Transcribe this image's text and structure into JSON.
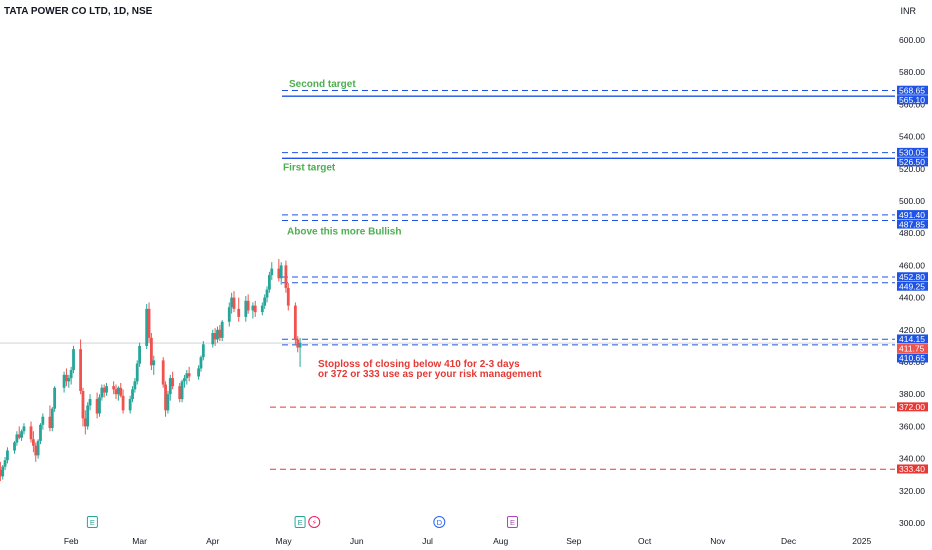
{
  "header": {
    "title": "TATA POWER CO LTD, 1D, NSE",
    "currency": "INR"
  },
  "chart_data": {
    "type": "candlestick",
    "y_range": [
      295,
      610
    ],
    "y_ticks": [
      300,
      320,
      340,
      360,
      380,
      400,
      420,
      440,
      460,
      480,
      500,
      520,
      540,
      560,
      580,
      600
    ],
    "y_tick_labels": [
      "300.00",
      "320.00",
      "340.00",
      "360.00",
      "380.00",
      "400.00",
      "420.00",
      "440.00",
      "460.00",
      "480.00",
      "500.00",
      "520.00",
      "540.00",
      "560.00",
      "580.00",
      "600.00"
    ],
    "x_labels": [
      {
        "label": "Feb",
        "date": "2024-02-01"
      },
      {
        "label": "Mar",
        "date": "2024-03-01"
      },
      {
        "label": "Apr",
        "date": "2024-04-01"
      },
      {
        "label": "May",
        "date": "2024-05-01"
      },
      {
        "label": "Jun",
        "date": "2024-06-01"
      },
      {
        "label": "Jul",
        "date": "2024-07-01"
      },
      {
        "label": "Aug",
        "date": "2024-08-01"
      },
      {
        "label": "Sep",
        "date": "2024-09-01"
      },
      {
        "label": "Oct",
        "date": "2024-10-01"
      },
      {
        "label": "Nov",
        "date": "2024-11-01"
      },
      {
        "label": "Dec",
        "date": "2024-12-01"
      },
      {
        "label": "2025",
        "date": "2025-01-01"
      }
    ],
    "last_price": 411.75,
    "level_lines": [
      {
        "value": 568.65,
        "label": "568.65",
        "style": "dashed",
        "color": "#1e53e5"
      },
      {
        "value": 565.1,
        "label": "565.10",
        "style": "solid",
        "color": "#1e53e5"
      },
      {
        "value": 530.05,
        "label": "530.05",
        "style": "dashed",
        "color": "#1e53e5"
      },
      {
        "value": 526.5,
        "label": "526.50",
        "style": "solid",
        "color": "#1e53e5"
      },
      {
        "value": 491.4,
        "label": "491.40",
        "style": "dashed",
        "color": "#1e53e5"
      },
      {
        "value": 487.85,
        "label": "487.85",
        "style": "dashed",
        "color": "#1e53e5"
      },
      {
        "value": 452.8,
        "label": "452.80",
        "style": "dashed",
        "color": "#1e53e5"
      },
      {
        "value": 449.25,
        "label": "449.25",
        "style": "dashed",
        "color": "#1e53e5"
      },
      {
        "value": 414.15,
        "label": "414.15",
        "style": "dashed",
        "color": "#1e53e5"
      },
      {
        "value": 410.65,
        "label": "410.65",
        "style": "dashed",
        "color": "#1e53e5"
      },
      {
        "value": 372.0,
        "label": "372.00",
        "style": "dashed",
        "color": "#e53935"
      },
      {
        "value": 333.4,
        "label": "333.40",
        "style": "dashed",
        "color": "#e53935"
      }
    ],
    "annotations": [
      {
        "text": "Second target",
        "color": "#4caf50",
        "level": 565.1
      },
      {
        "text": "First target",
        "color": "#4caf50",
        "level": 526.5
      },
      {
        "text": "Above this more Bullish",
        "color": "#4caf50",
        "level": 487.85
      },
      {
        "text": "Stoploss of closing below 410 for 2-3 days",
        "color": "#e53935",
        "level": 410.65
      },
      {
        "text": "or 372 or 333 use as per your risk management",
        "color": "#e53935",
        "level": 410.65
      }
    ],
    "event_markers": [
      {
        "symbol": "E",
        "date": "2024-02-10",
        "color": "#26a69a"
      },
      {
        "symbol": "E",
        "date": "2024-05-08",
        "color": "#26a69a"
      },
      {
        "symbol": "⚡",
        "date": "2024-05-14",
        "color": "#e91e63"
      },
      {
        "symbol": "D",
        "date": "2024-07-06",
        "color": "#2962ff"
      },
      {
        "symbol": "E",
        "date": "2024-08-06",
        "color": "#ab47bc"
      }
    ],
    "candles": [
      {
        "date": "2024-01-02",
        "o": 333,
        "h": 338,
        "l": 326,
        "c": 329
      },
      {
        "date": "2024-01-03",
        "o": 329,
        "h": 336,
        "l": 327,
        "c": 335
      },
      {
        "date": "2024-01-04",
        "o": 335,
        "h": 341,
        "l": 333,
        "c": 339
      },
      {
        "date": "2024-01-05",
        "o": 339,
        "h": 347,
        "l": 337,
        "c": 345
      },
      {
        "date": "2024-01-08",
        "o": 345,
        "h": 351,
        "l": 343,
        "c": 350
      },
      {
        "date": "2024-01-09",
        "o": 350,
        "h": 357,
        "l": 348,
        "c": 355
      },
      {
        "date": "2024-01-10",
        "o": 355,
        "h": 360,
        "l": 352,
        "c": 353
      },
      {
        "date": "2024-01-11",
        "o": 353,
        "h": 358,
        "l": 351,
        "c": 357
      },
      {
        "date": "2024-01-12",
        "o": 357,
        "h": 362,
        "l": 355,
        "c": 360
      },
      {
        "date": "2024-01-15",
        "o": 360,
        "h": 363,
        "l": 350,
        "c": 352
      },
      {
        "date": "2024-01-16",
        "o": 352,
        "h": 357,
        "l": 344,
        "c": 348
      },
      {
        "date": "2024-01-17",
        "o": 348,
        "h": 350,
        "l": 338,
        "c": 342
      },
      {
        "date": "2024-01-18",
        "o": 342,
        "h": 352,
        "l": 340,
        "c": 351
      },
      {
        "date": "2024-01-19",
        "o": 351,
        "h": 362,
        "l": 349,
        "c": 361
      },
      {
        "date": "2024-01-20",
        "o": 361,
        "h": 368,
        "l": 358,
        "c": 366
      },
      {
        "date": "2024-01-23",
        "o": 366,
        "h": 373,
        "l": 357,
        "c": 359
      },
      {
        "date": "2024-01-24",
        "o": 359,
        "h": 372,
        "l": 357,
        "c": 371
      },
      {
        "date": "2024-01-25",
        "o": 371,
        "h": 385,
        "l": 369,
        "c": 384
      },
      {
        "date": "2024-01-29",
        "o": 384,
        "h": 394,
        "l": 381,
        "c": 392
      },
      {
        "date": "2024-01-30",
        "o": 392,
        "h": 396,
        "l": 385,
        "c": 388
      },
      {
        "date": "2024-01-31",
        "o": 388,
        "h": 392,
        "l": 384,
        "c": 390
      },
      {
        "date": "2024-02-01",
        "o": 390,
        "h": 397,
        "l": 386,
        "c": 395
      },
      {
        "date": "2024-02-02",
        "o": 395,
        "h": 410,
        "l": 393,
        "c": 408
      },
      {
        "date": "2024-02-05",
        "o": 408,
        "h": 414,
        "l": 380,
        "c": 382
      },
      {
        "date": "2024-02-06",
        "o": 382,
        "h": 384,
        "l": 360,
        "c": 365
      },
      {
        "date": "2024-02-07",
        "o": 365,
        "h": 370,
        "l": 355,
        "c": 360
      },
      {
        "date": "2024-02-08",
        "o": 360,
        "h": 375,
        "l": 358,
        "c": 373
      },
      {
        "date": "2024-02-09",
        "o": 373,
        "h": 380,
        "l": 370,
        "c": 377
      },
      {
        "date": "2024-02-12",
        "o": 377,
        "h": 381,
        "l": 365,
        "c": 368
      },
      {
        "date": "2024-02-13",
        "o": 368,
        "h": 380,
        "l": 366,
        "c": 378
      },
      {
        "date": "2024-02-14",
        "o": 378,
        "h": 386,
        "l": 376,
        "c": 384
      },
      {
        "date": "2024-02-15",
        "o": 384,
        "h": 386,
        "l": 378,
        "c": 381
      },
      {
        "date": "2024-02-16",
        "o": 381,
        "h": 387,
        "l": 379,
        "c": 385
      },
      {
        "date": "2024-02-19",
        "o": 385,
        "h": 388,
        "l": 380,
        "c": 383
      },
      {
        "date": "2024-02-20",
        "o": 383,
        "h": 386,
        "l": 377,
        "c": 380
      },
      {
        "date": "2024-02-21",
        "o": 380,
        "h": 385,
        "l": 376,
        "c": 384
      },
      {
        "date": "2024-02-22",
        "o": 384,
        "h": 387,
        "l": 378,
        "c": 379
      },
      {
        "date": "2024-02-23",
        "o": 379,
        "h": 383,
        "l": 368,
        "c": 370
      },
      {
        "date": "2024-02-26",
        "o": 370,
        "h": 379,
        "l": 368,
        "c": 377
      },
      {
        "date": "2024-02-27",
        "o": 377,
        "h": 385,
        "l": 375,
        "c": 383
      },
      {
        "date": "2024-02-28",
        "o": 383,
        "h": 390,
        "l": 381,
        "c": 388
      },
      {
        "date": "2024-02-29",
        "o": 388,
        "h": 401,
        "l": 386,
        "c": 399
      },
      {
        "date": "2024-03-01",
        "o": 399,
        "h": 412,
        "l": 397,
        "c": 410
      },
      {
        "date": "2024-03-04",
        "o": 410,
        "h": 436,
        "l": 408,
        "c": 433
      },
      {
        "date": "2024-03-05",
        "o": 433,
        "h": 437,
        "l": 412,
        "c": 415
      },
      {
        "date": "2024-03-06",
        "o": 415,
        "h": 418,
        "l": 395,
        "c": 398
      },
      {
        "date": "2024-03-07",
        "o": 398,
        "h": 404,
        "l": 392,
        "c": 401
      },
      {
        "date": "2024-03-11",
        "o": 401,
        "h": 403,
        "l": 384,
        "c": 386
      },
      {
        "date": "2024-03-12",
        "o": 386,
        "h": 388,
        "l": 366,
        "c": 370
      },
      {
        "date": "2024-03-13",
        "o": 370,
        "h": 382,
        "l": 368,
        "c": 380
      },
      {
        "date": "2024-03-14",
        "o": 380,
        "h": 392,
        "l": 376,
        "c": 390
      },
      {
        "date": "2024-03-15",
        "o": 390,
        "h": 394,
        "l": 383,
        "c": 385
      },
      {
        "date": "2024-03-18",
        "o": 385,
        "h": 387,
        "l": 375,
        "c": 377
      },
      {
        "date": "2024-03-19",
        "o": 377,
        "h": 389,
        "l": 375,
        "c": 388
      },
      {
        "date": "2024-03-20",
        "o": 388,
        "h": 392,
        "l": 384,
        "c": 390
      },
      {
        "date": "2024-03-21",
        "o": 390,
        "h": 395,
        "l": 386,
        "c": 393
      },
      {
        "date": "2024-03-22",
        "o": 393,
        "h": 397,
        "l": 388,
        "c": 391
      },
      {
        "date": "2024-03-26",
        "o": 391,
        "h": 398,
        "l": 389,
        "c": 396
      },
      {
        "date": "2024-03-27",
        "o": 396,
        "h": 404,
        "l": 394,
        "c": 403
      },
      {
        "date": "2024-03-28",
        "o": 403,
        "h": 413,
        "l": 401,
        "c": 411
      },
      {
        "date": "2024-04-01",
        "o": 411,
        "h": 420,
        "l": 409,
        "c": 418
      },
      {
        "date": "2024-04-02",
        "o": 418,
        "h": 421,
        "l": 410,
        "c": 414
      },
      {
        "date": "2024-04-03",
        "o": 414,
        "h": 422,
        "l": 412,
        "c": 420
      },
      {
        "date": "2024-04-04",
        "o": 420,
        "h": 423,
        "l": 413,
        "c": 415
      },
      {
        "date": "2024-04-05",
        "o": 415,
        "h": 426,
        "l": 413,
        "c": 425
      },
      {
        "date": "2024-04-08",
        "o": 425,
        "h": 437,
        "l": 422,
        "c": 434
      },
      {
        "date": "2024-04-09",
        "o": 434,
        "h": 443,
        "l": 430,
        "c": 440
      },
      {
        "date": "2024-04-10",
        "o": 440,
        "h": 444,
        "l": 431,
        "c": 433
      },
      {
        "date": "2024-04-12",
        "o": 433,
        "h": 440,
        "l": 425,
        "c": 428
      },
      {
        "date": "2024-04-15",
        "o": 428,
        "h": 441,
        "l": 425,
        "c": 438
      },
      {
        "date": "2024-04-16",
        "o": 438,
        "h": 442,
        "l": 430,
        "c": 432
      },
      {
        "date": "2024-04-18",
        "o": 432,
        "h": 437,
        "l": 427,
        "c": 435
      },
      {
        "date": "2024-04-19",
        "o": 435,
        "h": 438,
        "l": 428,
        "c": 431
      },
      {
        "date": "2024-04-22",
        "o": 431,
        "h": 437,
        "l": 429,
        "c": 435
      },
      {
        "date": "2024-04-23",
        "o": 435,
        "h": 442,
        "l": 433,
        "c": 440
      },
      {
        "date": "2024-04-24",
        "o": 440,
        "h": 447,
        "l": 437,
        "c": 445
      },
      {
        "date": "2024-04-25",
        "o": 445,
        "h": 456,
        "l": 443,
        "c": 454
      },
      {
        "date": "2024-04-26",
        "o": 454,
        "h": 462,
        "l": 451,
        "c": 458
      },
      {
        "date": "2024-04-29",
        "o": 458,
        "h": 464,
        "l": 450,
        "c": 452
      },
      {
        "date": "2024-04-30",
        "o": 452,
        "h": 462,
        "l": 448,
        "c": 460
      },
      {
        "date": "2024-05-02",
        "o": 460,
        "h": 463,
        "l": 443,
        "c": 446
      },
      {
        "date": "2024-05-03",
        "o": 446,
        "h": 449,
        "l": 432,
        "c": 435
      },
      {
        "date": "2024-05-06",
        "o": 435,
        "h": 437,
        "l": 411,
        "c": 414
      },
      {
        "date": "2024-05-07",
        "o": 414,
        "h": 416,
        "l": 406,
        "c": 409
      },
      {
        "date": "2024-05-08",
        "o": 409,
        "h": 415,
        "l": 397,
        "c": 412
      }
    ]
  }
}
